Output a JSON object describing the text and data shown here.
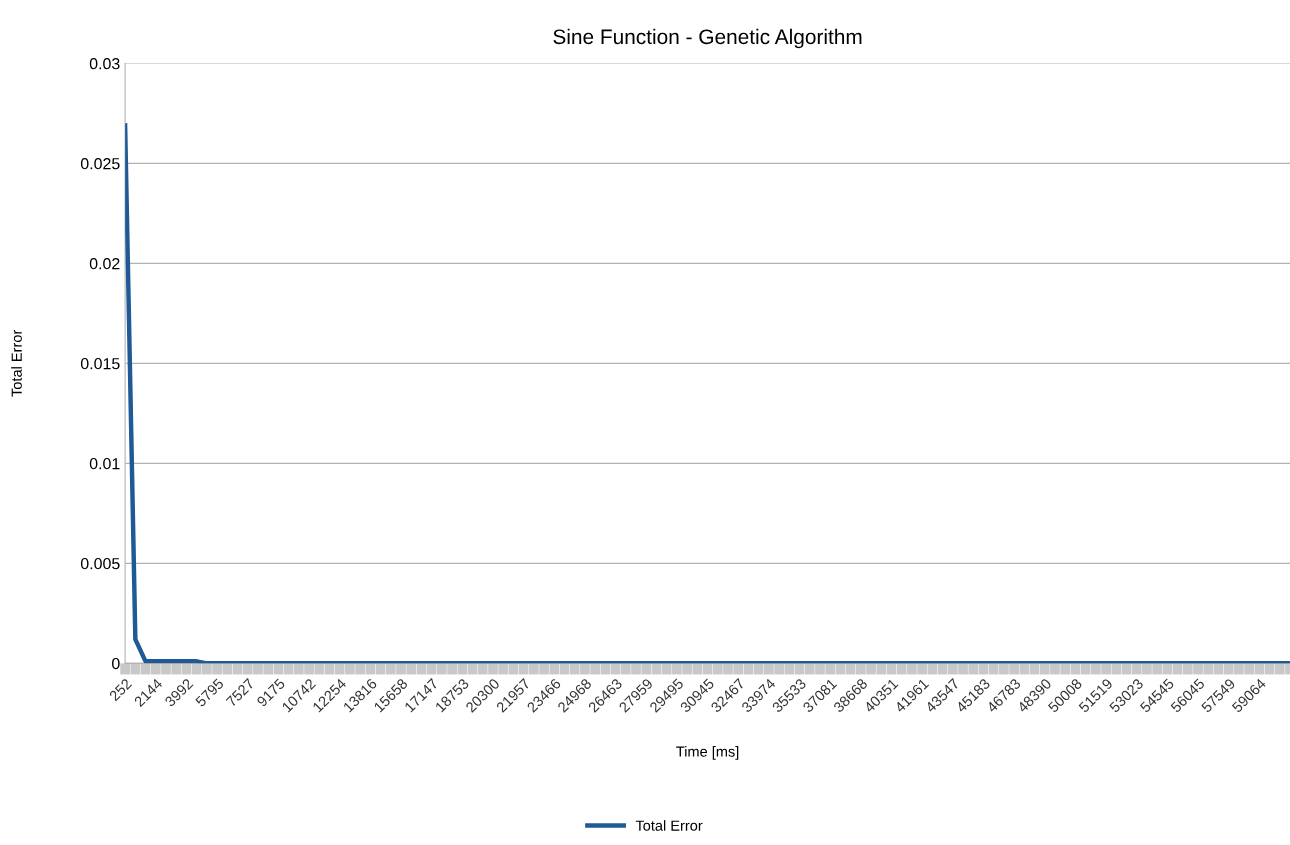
{
  "chart_data": {
    "type": "line",
    "title": "Sine Function - Genetic Algorithm",
    "xlabel": "Time [ms]",
    "ylabel": "Total Error",
    "categories": [
      "252",
      null,
      null,
      "2144",
      null,
      null,
      "3992",
      null,
      null,
      "5795",
      null,
      null,
      "7527",
      null,
      null,
      "9175",
      null,
      null,
      "10742",
      null,
      null,
      "12254",
      null,
      null,
      "13816",
      null,
      null,
      "15658",
      null,
      null,
      "17147",
      null,
      null,
      "18753",
      null,
      null,
      "20300",
      null,
      null,
      "21957",
      null,
      null,
      "23466",
      null,
      null,
      "24968",
      null,
      null,
      "26463",
      null,
      null,
      "27959",
      null,
      null,
      "29495",
      null,
      null,
      "30945",
      null,
      null,
      "32467",
      null,
      null,
      "33974",
      null,
      null,
      "35533",
      null,
      null,
      "37081",
      null,
      null,
      "38668",
      null,
      null,
      "40351",
      null,
      null,
      "41961",
      null,
      null,
      "43547",
      null,
      null,
      "45183",
      null,
      null,
      "46783",
      null,
      null,
      "48390",
      null,
      null,
      "50008",
      null,
      null,
      "51519",
      null,
      null,
      "53023",
      null,
      null,
      "54545",
      null,
      null,
      "56045",
      null,
      null,
      "57549",
      null,
      null,
      "59064",
      null,
      null,
      null
    ],
    "series": [
      {
        "name": "Total Error",
        "color": "#1f5a96",
        "values": [
          0.0269,
          0.0012,
          0.0001,
          0.0001,
          0.0001,
          0.0001,
          0.0001,
          0.0001,
          0,
          0,
          0,
          0,
          0,
          0,
          0,
          0,
          0,
          0,
          0,
          0,
          0,
          0,
          0,
          0,
          0,
          0,
          0,
          0,
          0,
          0,
          0,
          0,
          0,
          0,
          0,
          0,
          0,
          0,
          0,
          0,
          0,
          0,
          0,
          0,
          0,
          0,
          0,
          0,
          0,
          0,
          0,
          0,
          0,
          0,
          0,
          0,
          0,
          0,
          0,
          0,
          0,
          0,
          0,
          0,
          0,
          0,
          0,
          0,
          0,
          0,
          0,
          0,
          0,
          0,
          0,
          0,
          0,
          0,
          0,
          0,
          0,
          0,
          0,
          0,
          0,
          0,
          0,
          0,
          0,
          0,
          0,
          0,
          0,
          0,
          0,
          0,
          0,
          0,
          0,
          0,
          0,
          0,
          0,
          0,
          0,
          0,
          0,
          0,
          0,
          0,
          0,
          0,
          0,
          0,
          0
        ]
      }
    ],
    "ylim": [
      0,
      0.03
    ],
    "yticks": [
      0,
      0.005,
      0.01,
      0.015,
      0.02,
      0.025,
      0.03
    ],
    "grid": "y",
    "legend": "bottom",
    "marker": "none",
    "line_style": "solid"
  }
}
